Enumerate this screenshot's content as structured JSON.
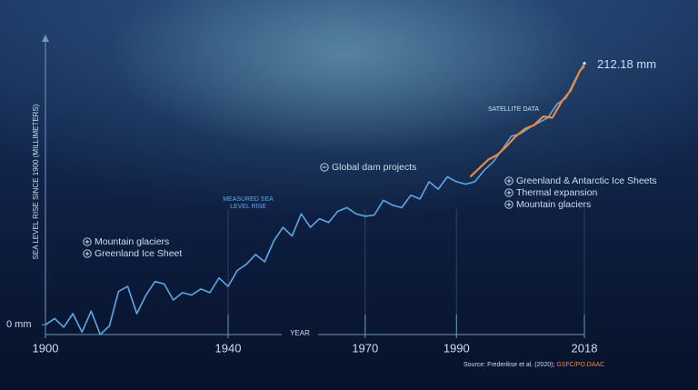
{
  "chart_data": {
    "type": "line",
    "y_axis_label": "SEA LEVEL RISE SINCE 1900 (MILLIMETERS)",
    "x_axis_label": "YEAR",
    "xlim": [
      1900,
      2018
    ],
    "ylim": [
      -8,
      234
    ],
    "xticks": [
      1900,
      1940,
      1970,
      1990,
      2018
    ],
    "yticks": [
      {
        "value": 0,
        "label": "0 mm"
      }
    ],
    "grid": true,
    "series": [
      {
        "name": "MEASURED SEA LEVEL RISE",
        "color": "#5aa9e6",
        "x": [
          1900,
          1902,
          1904,
          1906,
          1908,
          1910,
          1912,
          1914,
          1916,
          1918,
          1920,
          1922,
          1924,
          1926,
          1928,
          1930,
          1932,
          1934,
          1936,
          1938,
          1940,
          1942,
          1944,
          1946,
          1948,
          1950,
          1952,
          1954,
          1956,
          1958,
          1960,
          1962,
          1964,
          1966,
          1968,
          1970,
          1972,
          1974,
          1976,
          1978,
          1980,
          1982,
          1984,
          1986,
          1988,
          1990,
          1992,
          1994,
          1996,
          1998,
          2000,
          2002,
          2004,
          2006,
          2008,
          2010,
          2012,
          2014,
          2016,
          2018
        ],
        "values": [
          0,
          5,
          -2,
          9,
          -6,
          11,
          -8,
          -1,
          27,
          31,
          9,
          24,
          35,
          33,
          20,
          26,
          24,
          29,
          26,
          38,
          31,
          44,
          49,
          57,
          51,
          68,
          79,
          72,
          90,
          79,
          86,
          83,
          92,
          95,
          90,
          88,
          89,
          101,
          97,
          95,
          105,
          102,
          116,
          110,
          120,
          116,
          114,
          116,
          125,
          132,
          142,
          153,
          155,
          160,
          164,
          168,
          179,
          184,
          199,
          212.18
        ]
      },
      {
        "name": "SATELLITE DATA",
        "color": "#f08a3c",
        "x": [
          1993,
          1995,
          1997,
          1999,
          2001,
          2003,
          2005,
          2007,
          2009,
          2011,
          2013,
          2015,
          2017,
          2018
        ],
        "values": [
          120,
          127,
          134,
          138,
          145,
          153,
          159,
          162,
          169,
          168,
          181,
          190,
          206,
          210
        ]
      }
    ],
    "end_value": {
      "value": 212.18,
      "label": "212.18 mm"
    },
    "annotations": [
      {
        "items": [
          {
            "icon": "plus",
            "text": "Mountain glaciers"
          },
          {
            "icon": "plus",
            "text": "Greenland Ice Sheet"
          }
        ]
      },
      {
        "items": [
          {
            "icon": "minus",
            "text": "Global dam projects"
          }
        ]
      },
      {
        "items": [
          {
            "icon": "plus",
            "text": "Greenland & Antarctic Ice Sheets"
          },
          {
            "icon": "plus",
            "text": "Thermal expansion"
          },
          {
            "icon": "plus",
            "text": "Mountain glaciers"
          }
        ]
      }
    ],
    "source": {
      "text": "Source: Frederikse et al. (2020);",
      "credit": "GSFC/PO.DAAC"
    }
  }
}
